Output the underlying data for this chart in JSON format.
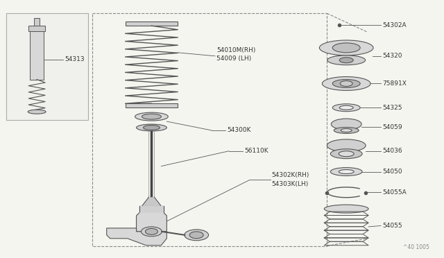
{
  "bg": "#f5f5f0",
  "lc": "#555555",
  "tc": "#333333",
  "footnote": "^40 1005",
  "label_54313": "54313",
  "label_spring": [
    "54010M(RH)",
    "54009 (LH)"
  ],
  "label_top_mount": "54300K",
  "label_strut": "56110K",
  "label_knuckle": [
    "54302K(RH)",
    "54303K(LH)"
  ],
  "label_top_right": "54302A",
  "right_labels": [
    "54320",
    "75891X",
    "54325",
    "54059",
    "54036",
    "54050",
    "54055A",
    "54055"
  ]
}
